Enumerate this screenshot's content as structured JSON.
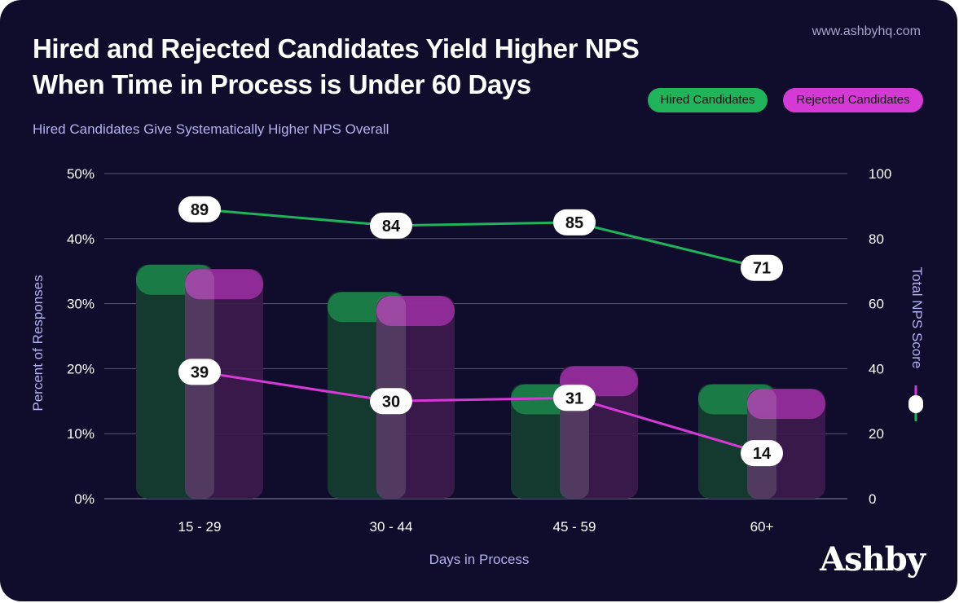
{
  "header": {
    "title_line1": "Hired and Rejected Candidates Yield Higher NPS",
    "title_line2": "When Time in Process is Under 60 Days",
    "subtitle": "Hired Candidates Give Systematically Higher NPS Overall",
    "url": "www.ashbyhq.com"
  },
  "brand": {
    "logo_text": "Ashby"
  },
  "legend": {
    "hired": "Hired Candidates",
    "rejected": "Rejected Candidates"
  },
  "colors": {
    "background": "#0f0d2b",
    "hired": "#1fb35a",
    "rejected": "#d63ad6",
    "hired_bar": "#14392f",
    "rejected_bar": "#3d1a4c",
    "grid": "#5a5878",
    "axis_label": "#b5b0f0"
  },
  "chart_data": {
    "type": "bar+line",
    "categories": [
      "15 - 29",
      "30 - 44",
      "45 - 59",
      "60+"
    ],
    "xlabel": "Days in Process",
    "ylabel_left": "Percent of Responses",
    "ylabel_right": "Total NPS Score",
    "ylim_left": [
      0,
      50
    ],
    "ylim_right": [
      0,
      100
    ],
    "yticks_left": [
      "0%",
      "10%",
      "20%",
      "30%",
      "40%",
      "50%"
    ],
    "yticks_right": [
      "0",
      "20",
      "40",
      "60",
      "80",
      "100"
    ],
    "grid": true,
    "bars": [
      {
        "name": "Hired Candidates",
        "values": [
          36,
          31.8,
          17.6,
          17.6
        ]
      },
      {
        "name": "Rejected Candidates",
        "values": [
          35.3,
          31.2,
          20.4,
          16.9
        ]
      }
    ],
    "lines": [
      {
        "name": "Hired Candidates",
        "values": [
          89,
          84,
          85,
          71
        ],
        "labels": [
          "89",
          "84",
          "85",
          "71"
        ]
      },
      {
        "name": "Rejected Candidates",
        "values": [
          39,
          30,
          31,
          14
        ],
        "labels": [
          "39",
          "30",
          "31",
          "14"
        ]
      }
    ]
  }
}
